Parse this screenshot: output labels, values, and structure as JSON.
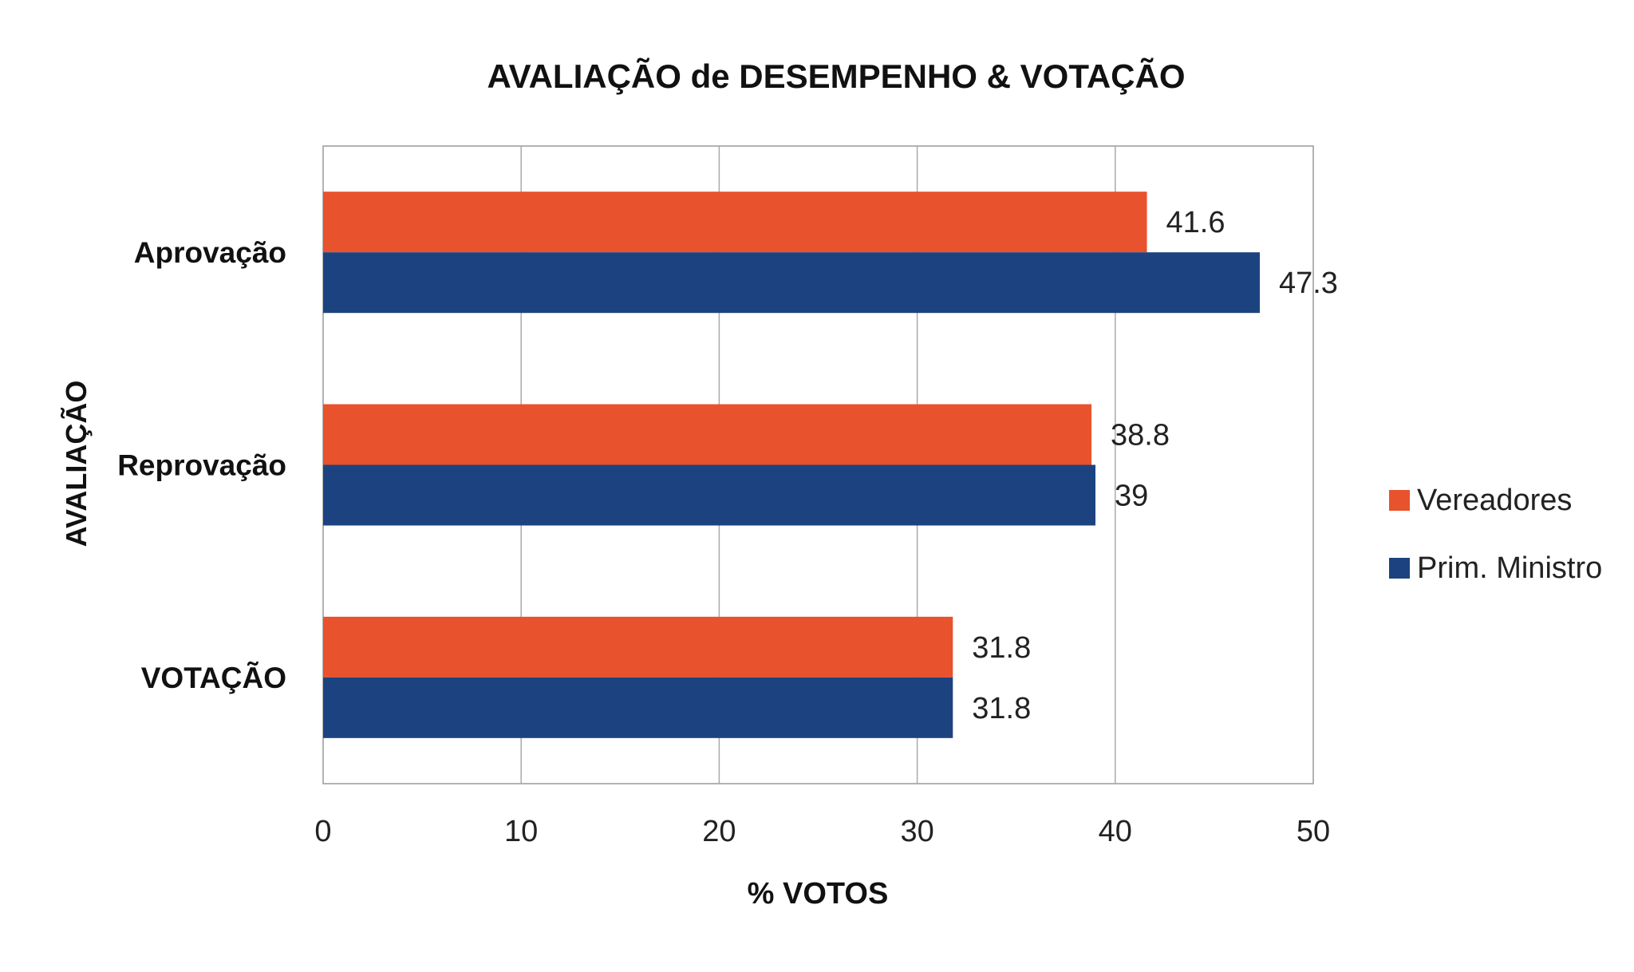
{
  "chart_data": {
    "type": "bar",
    "orientation": "horizontal",
    "title": "AVALIAÇÃO de DESEMPENHO & VOTAÇÃO",
    "xlabel": "% VOTOS",
    "ylabel": "AVALIAÇÃO",
    "categories": [
      "Aprovação",
      "Reprovação",
      "VOTAÇÃO"
    ],
    "series": [
      {
        "name": "Vereadores",
        "color": "#E8522C",
        "values": [
          41.6,
          38.8,
          31.8
        ],
        "labels": [
          "41.6",
          "38.8",
          "31.8"
        ]
      },
      {
        "name": "Prim. Ministro",
        "color": "#1C4380",
        "values": [
          47.3,
          39,
          31.8
        ],
        "labels": [
          "47.3",
          "39",
          "31.8"
        ]
      }
    ],
    "xlim": [
      0,
      50
    ],
    "xticks": [
      "0",
      "10",
      "20",
      "30",
      "40",
      "50"
    ],
    "grid": true,
    "legend": "right"
  }
}
